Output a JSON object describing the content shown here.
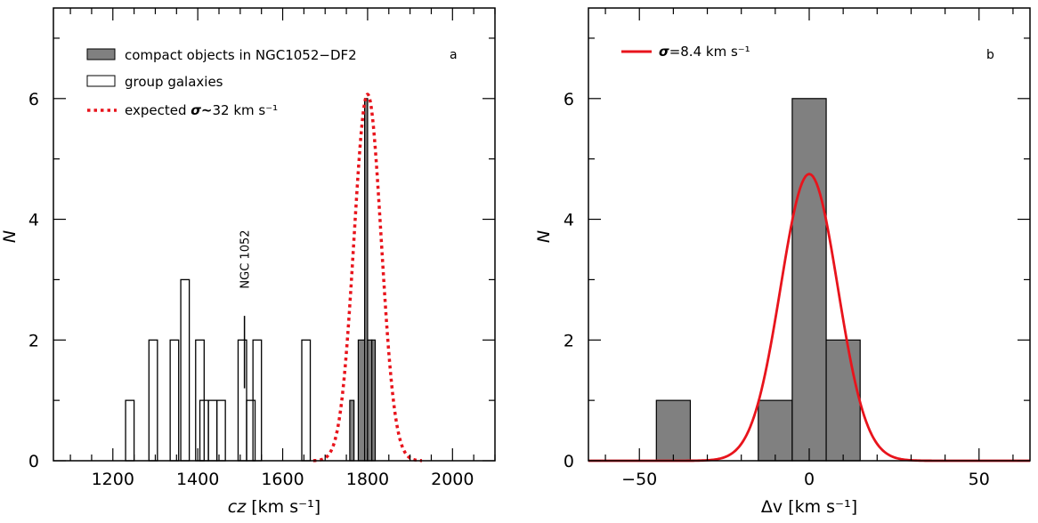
{
  "chart_data": [
    {
      "type": "bar",
      "panel": "a",
      "xlabel_var": "cz",
      "xlabel_unit": "[km s⁻¹]",
      "ylabel": "N",
      "xlim": [
        1060,
        2100
      ],
      "ylim": [
        0,
        7.5
      ],
      "xticks": [
        "1200",
        "1400",
        "1600",
        "1800",
        "2000"
      ],
      "xtick_values": [
        1200,
        1400,
        1600,
        1800,
        2000
      ],
      "yticks": [
        "0",
        "2",
        "4",
        "6"
      ],
      "ytick_values": [
        0,
        2,
        4,
        6
      ],
      "legend": {
        "compact": "compact objects in NGC1052−DF2",
        "group": "group galaxies",
        "expected_prefix": "expected ",
        "expected_sigma": "σ~",
        "expected_suffix": "32 km s⁻¹"
      },
      "annotation": "NGC 1052",
      "annotation_x": 1510,
      "annotation_line_y": [
        1.2,
        2.4
      ],
      "series": [
        {
          "name": "group galaxies",
          "style": "open-step",
          "bin_width": 20,
          "bins": [
            {
              "left": 1230,
              "count": 1
            },
            {
              "left": 1285,
              "count": 2
            },
            {
              "left": 1335,
              "count": 2
            },
            {
              "left": 1360,
              "count": 3
            },
            {
              "left": 1395,
              "count": 2
            },
            {
              "left": 1405,
              "count": 1
            },
            {
              "left": 1425,
              "count": 1
            },
            {
              "left": 1445,
              "count": 1
            },
            {
              "left": 1495,
              "count": 2
            },
            {
              "left": 1515,
              "count": 1
            },
            {
              "left": 1530,
              "count": 2
            },
            {
              "left": 1645,
              "count": 2
            }
          ]
        },
        {
          "name": "compact objects in NGC1052-DF2",
          "style": "filled",
          "color": "#808080",
          "bins": [
            {
              "left": 1758,
              "right": 1768,
              "count": 1
            },
            {
              "left": 1778,
              "right": 1793,
              "count": 2
            },
            {
              "left": 1793,
              "right": 1800,
              "count": 6
            },
            {
              "left": 1800,
              "right": 1810,
              "count": 2
            },
            {
              "left": 1810,
              "right": 1818,
              "count": 2
            }
          ]
        },
        {
          "name": "expected σ~32 km s⁻¹",
          "style": "dotted-gaussian",
          "color": "#e8141c",
          "mu": 1800,
          "sigma": 32,
          "peak": 6.07
        }
      ],
      "panel_letter": "a"
    },
    {
      "type": "bar",
      "panel": "b",
      "xlabel_var": "Δv",
      "xlabel_unit": "[km s⁻¹]",
      "ylabel": "N",
      "xlim": [
        -65,
        65
      ],
      "ylim": [
        0,
        7.5
      ],
      "xticks": [
        "−50",
        "0",
        "50"
      ],
      "xtick_values": [
        -50,
        0,
        50
      ],
      "yticks": [
        "0",
        "2",
        "4",
        "6"
      ],
      "ytick_values": [
        0,
        2,
        4,
        6
      ],
      "legend": {
        "sigma": "σ",
        "value": "=8.4 km s⁻¹"
      },
      "series": [
        {
          "name": "histogram",
          "style": "filled",
          "color": "#808080",
          "bins": [
            {
              "left": -45,
              "right": -35,
              "count": 1
            },
            {
              "left": -15,
              "right": -5,
              "count": 1
            },
            {
              "left": -5,
              "right": 5,
              "count": 6
            },
            {
              "left": 5,
              "right": 15,
              "count": 2
            }
          ]
        },
        {
          "name": "σ=8.4 km s⁻¹",
          "style": "solid-gaussian",
          "color": "#e8141c",
          "mu": 0,
          "sigma": 8.4,
          "peak": 4.75
        }
      ],
      "panel_letter": "b"
    }
  ]
}
